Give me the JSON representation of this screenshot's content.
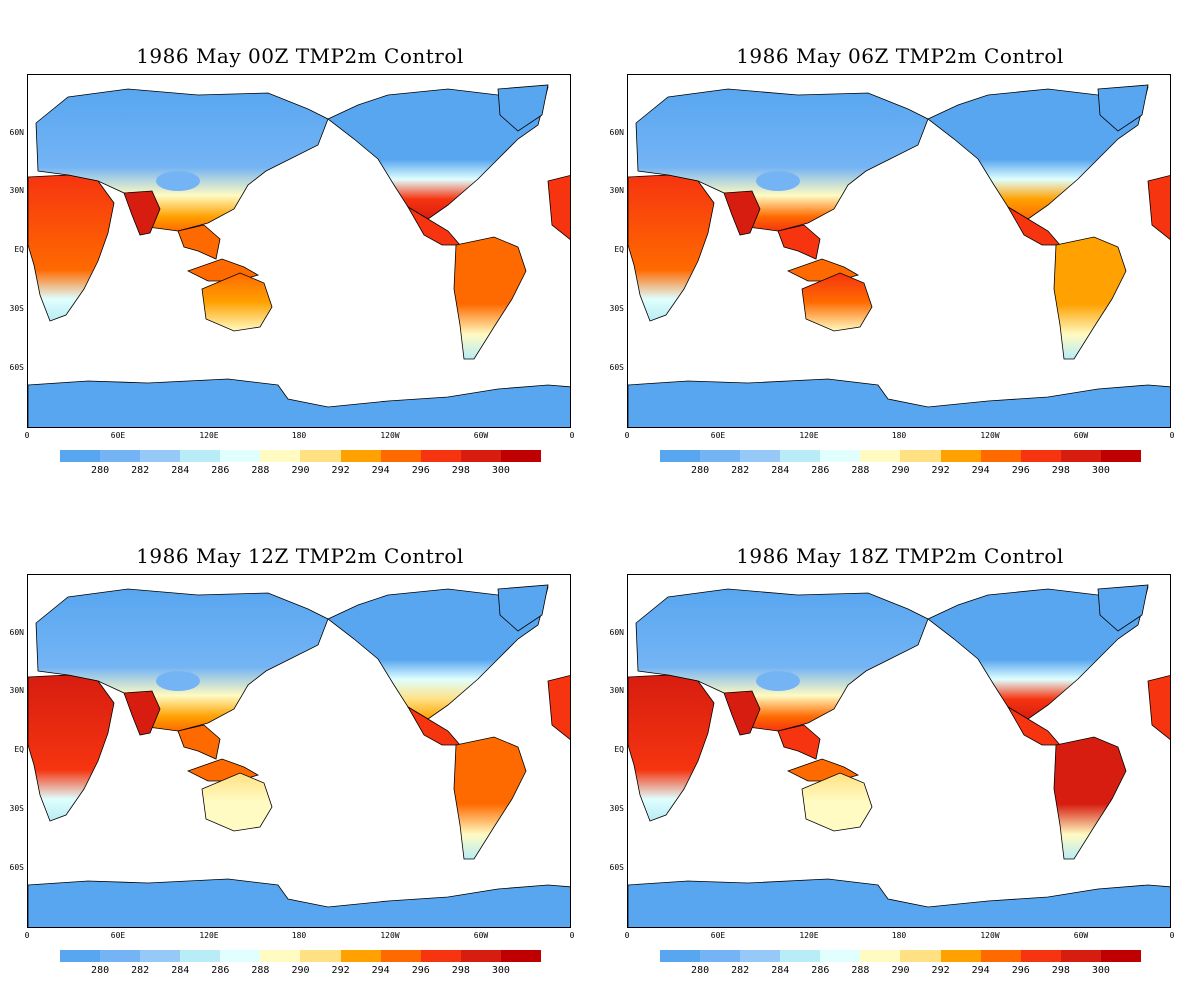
{
  "palette": {
    "levels": [
      "280",
      "282",
      "284",
      "286",
      "288",
      "290",
      "292",
      "294",
      "296",
      "298",
      "300"
    ],
    "colors": [
      "#58a6f0",
      "#74b4f5",
      "#96c8f8",
      "#b8ecf6",
      "#e0fffe",
      "#fffbc2",
      "#ffe184",
      "#ffa100",
      "#ff6a00",
      "#f63410",
      "#d71d10",
      "#c00000"
    ],
    "ocean": "#ffffff"
  },
  "lat_labels": [
    "60N",
    "30N",
    "EQ",
    "30S",
    "60S"
  ],
  "lon_labels": [
    "0",
    "60E",
    "120E",
    "180",
    "120W",
    "60W",
    "0"
  ],
  "panels": [
    {
      "title": "1986 May  00Z TMP2m Control",
      "hour": "00Z"
    },
    {
      "title": "1986  May 06Z TMP2m Control",
      "hour": "06Z"
    },
    {
      "title": "1986  May 12Z TMP2m Control",
      "hour": "12Z"
    },
    {
      "title": "1986  May 18Z TMP2m Control",
      "hour": "18Z"
    }
  ]
}
